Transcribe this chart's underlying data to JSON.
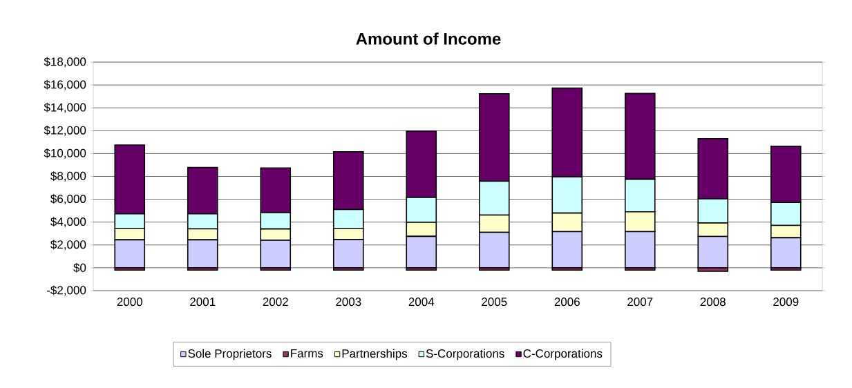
{
  "chart_data": {
    "type": "bar",
    "title": "Amount of Income",
    "stacked": true,
    "grid": "y",
    "legend": "bottom",
    "categories": [
      "2000",
      "2001",
      "2002",
      "2003",
      "2004",
      "2005",
      "2006",
      "2007",
      "2008",
      "2009"
    ],
    "series": [
      {
        "name": "Sole Proprietors",
        "color": "#ccccff",
        "values": [
          2450,
          2450,
          2420,
          2480,
          2750,
          3110,
          3170,
          3170,
          2740,
          2630
        ]
      },
      {
        "name": "Farms",
        "color": "#993366",
        "values": [
          -200,
          -200,
          -200,
          -200,
          -200,
          -200,
          -200,
          -200,
          -300,
          -200
        ]
      },
      {
        "name": "Partnerships",
        "color": "#ffffcc",
        "values": [
          1000,
          960,
          980,
          970,
          1230,
          1510,
          1620,
          1730,
          1190,
          1080
        ]
      },
      {
        "name": "S-Corporations",
        "color": "#ccffff",
        "values": [
          1270,
          1310,
          1430,
          1650,
          2180,
          2960,
          3170,
          2850,
          2110,
          2010
        ]
      },
      {
        "name": "C-Corporations",
        "color": "#660066",
        "values": [
          6030,
          4060,
          3910,
          5060,
          5800,
          7660,
          7770,
          7510,
          5270,
          4920
        ]
      }
    ],
    "ylim": [
      -2000,
      18000
    ],
    "yticks": [
      {
        "value": -2000,
        "label": "-$2,000"
      },
      {
        "value": 0,
        "label": "$0"
      },
      {
        "value": 2000,
        "label": "$2,000"
      },
      {
        "value": 4000,
        "label": "$4,000"
      },
      {
        "value": 6000,
        "label": "$6,000"
      },
      {
        "value": 8000,
        "label": "$8,000"
      },
      {
        "value": 10000,
        "label": "$10,000"
      },
      {
        "value": 12000,
        "label": "$12,000"
      },
      {
        "value": 14000,
        "label": "$14,000"
      },
      {
        "value": 16000,
        "label": "$16,000"
      },
      {
        "value": 18000,
        "label": "$18,000"
      }
    ]
  }
}
